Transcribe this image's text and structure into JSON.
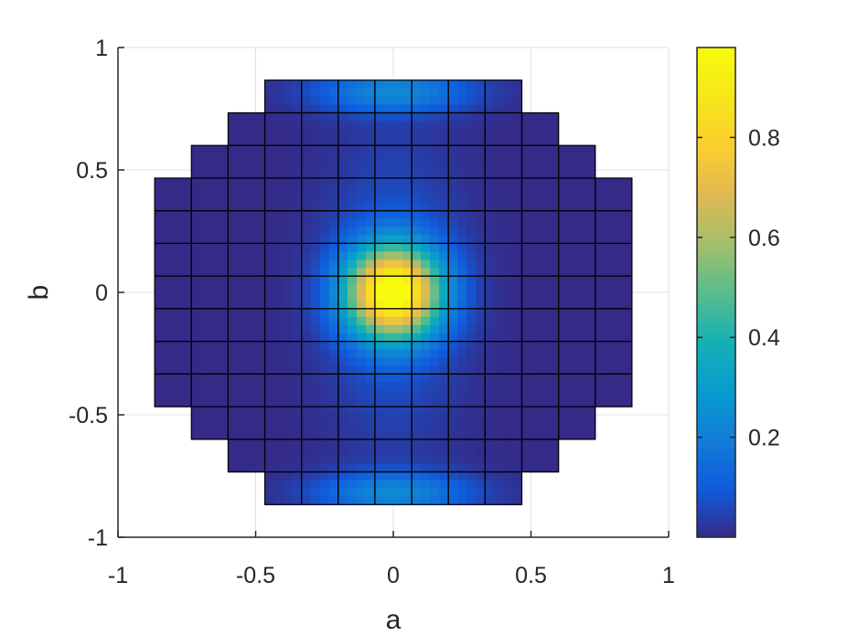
{
  "chart_data": {
    "type": "heatmap",
    "title": "",
    "xlabel": "a",
    "ylabel": "b",
    "xlim": [
      -1,
      1
    ],
    "ylim": [
      -1,
      1
    ],
    "xticks": [
      "-1",
      "-0.5",
      "0",
      "0.5",
      "1"
    ],
    "yticks": [
      "-1",
      "-0.5",
      "0",
      "0.5",
      "1"
    ],
    "xtick_values": [
      -1,
      -0.5,
      0,
      0.5,
      1
    ],
    "ytick_values": [
      -1,
      -0.5,
      0,
      0.5,
      1
    ],
    "grid": true,
    "colormap": "parula",
    "colorbar": {
      "ticks": [
        "0.2",
        "0.4",
        "0.6",
        "0.8"
      ],
      "tick_values": [
        0.2,
        0.4,
        0.6,
        0.8
      ],
      "range": [
        0,
        0.98
      ]
    },
    "cell_grid": {
      "x_edges": [
        -0.8667,
        -0.7333,
        -0.6,
        -0.4667,
        -0.3333,
        -0.2,
        -0.0667,
        0.0667,
        0.2,
        0.3333,
        0.4667,
        0.6,
        0.7333,
        0.8667
      ],
      "y_edges": [
        0.8667,
        0.7333,
        0.6,
        0.4667,
        0.3333,
        0.2,
        0.0667,
        -0.0667,
        -0.2,
        -0.3333,
        -0.4667,
        -0.6,
        -0.7333,
        -0.8667
      ],
      "row_col_ranges": [
        [
          3,
          9
        ],
        [
          2,
          10
        ],
        [
          1,
          11
        ],
        [
          0,
          12
        ],
        [
          0,
          12
        ],
        [
          0,
          12
        ],
        [
          0,
          12
        ],
        [
          0,
          12
        ],
        [
          0,
          12
        ],
        [
          0,
          12
        ],
        [
          1,
          11
        ],
        [
          2,
          10
        ],
        [
          3,
          9
        ]
      ]
    },
    "intensity_field": {
      "peak": 0.98,
      "center": [
        0,
        0
      ],
      "sigma_a": 0.12,
      "sigma_b": 0.13,
      "halo_amplitude": 0.09,
      "halo_sigma_a": 0.17,
      "halo_sigma_b": 0.45,
      "edge_amplitude": 0.22,
      "edge_b": 0.82
    },
    "colors": {
      "low": "#352a87",
      "high": "#f9fb0e",
      "cell_border": "#000000",
      "axis": "#262626",
      "grid": "#e0e0e0"
    }
  }
}
